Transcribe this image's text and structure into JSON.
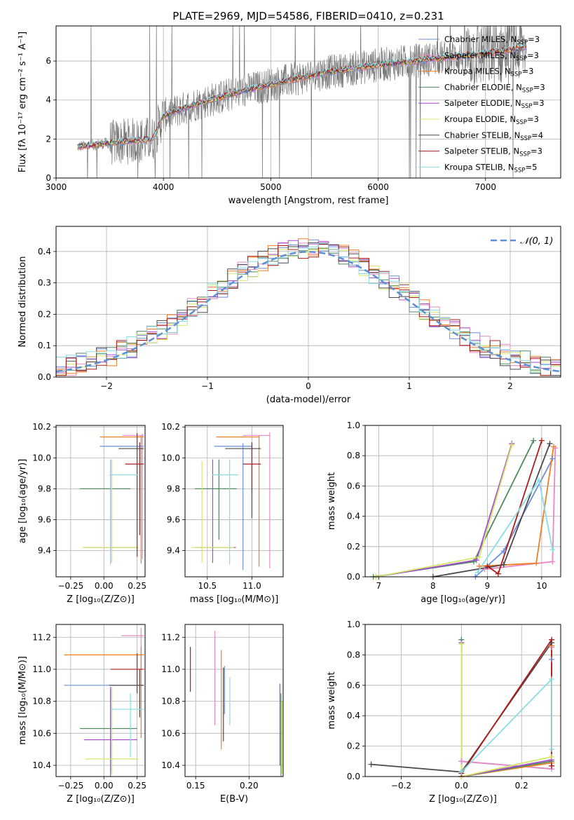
{
  "title": "PLATE=2969, MJD=54586, FIBERID=0410, z=0.231",
  "legend": [
    {
      "name": "Chabrier MILES, N",
      "sub": "SSP",
      "val": "=3",
      "color": "#6c8fdc"
    },
    {
      "name": "Salpeter MILES, N",
      "sub": "SSP",
      "val": "=3",
      "color": "#e68ac4"
    },
    {
      "name": "Kroupa MILES, N",
      "sub": "SSP",
      "val": "=3",
      "color": "#f07f22"
    },
    {
      "name": "Chabrier ELODIE, N",
      "sub": "SSP",
      "val": "=3",
      "color": "#4f8a5f"
    },
    {
      "name": "Salpeter ELODIE, N",
      "sub": "SSP",
      "val": "=3",
      "color": "#a34ccf"
    },
    {
      "name": "Kroupa ELODIE, N",
      "sub": "SSP",
      "val": "=3",
      "color": "#d4e86a"
    },
    {
      "name": "Chabrier STELIB, N",
      "sub": "SSP",
      "val": "=4",
      "color": "#4a4a4a"
    },
    {
      "name": "Salpeter STELIB, N",
      "sub": "SSP",
      "val": "=3",
      "color": "#b01c1c"
    },
    {
      "name": "Kroupa STELIB, N",
      "sub": "SSP",
      "val": "=5",
      "color": "#88dde3"
    }
  ],
  "gauss_legend": "𝒩(0, 1)",
  "chart_data": [
    {
      "type": "line",
      "title": "PLATE=2969, MJD=54586, FIBERID=0410, z=0.231",
      "xlabel": "wavelength [Angstrom, rest frame]",
      "ylabel": "Flux [fλ 10⁻¹⁷ erg cm⁻² s⁻¹ A⁻¹]",
      "xlim": [
        3000,
        7700
      ],
      "ylim": [
        0,
        7.8
      ],
      "xticks": [
        "3000",
        "4000",
        "5000",
        "6000",
        "7000"
      ],
      "yticks": [
        "0",
        "2",
        "4",
        "6"
      ],
      "data_x_range": [
        3200,
        7380
      ],
      "model_trend": {
        "x": [
          3200,
          3500,
          3900,
          4000,
          4300,
          4700,
          5000,
          5500,
          6000,
          6500,
          7000,
          7380
        ],
        "y": [
          1.6,
          1.8,
          2.0,
          3.2,
          3.8,
          4.4,
          4.8,
          5.4,
          5.8,
          6.1,
          6.4,
          6.7
        ]
      }
    },
    {
      "type": "histogram",
      "xlabel": "(data-model)/error",
      "ylabel": "Normed distribution",
      "xlim": [
        -2.5,
        2.5
      ],
      "ylim": [
        0,
        0.48
      ],
      "xticks": [
        "−2",
        "−1",
        "0",
        "1",
        "2"
      ],
      "yticks": [
        "0.0",
        "0.1",
        "0.2",
        "0.3",
        "0.4"
      ],
      "reference": "N(0,1)",
      "bin_width": 0.1
    },
    {
      "type": "errorbar",
      "xlabel": "Z [log₁₀(Z/Z⊙)]",
      "ylabel": "age  [log₁₀(age/yr)]",
      "xlim": [
        -0.36,
        0.31
      ],
      "ylim": [
        9.23,
        10.21
      ],
      "xticks": [
        "−0.25",
        "0.00",
        "0.25"
      ],
      "yticks": [
        "9.4",
        "9.6",
        "9.8",
        "10.0",
        "10.2"
      ],
      "points": [
        {
          "x": 0.27,
          "xerr": [
            0.3,
            0.03
          ],
          "y": 10.075,
          "yerr": [
            0.3,
            0.02
          ],
          "color": "#6c8fdc"
        },
        {
          "x": 0.29,
          "xerr": [
            0.15,
            0.01
          ],
          "y": 10.145,
          "yerr": [
            0.8,
            0.01
          ],
          "color": "#e68ac4"
        },
        {
          "x": 0.28,
          "xerr": [
            0.31,
            0.02
          ],
          "y": 10.135,
          "yerr": [
            0.82,
            0.01
          ],
          "color": "#f07f22"
        },
        {
          "x": 0.05,
          "xerr": [
            0.23,
            0.15
          ],
          "y": 9.8,
          "yerr": [
            0.33,
            0.19
          ],
          "color": "#4f8a5f"
        },
        {
          "x": 0.05,
          "xerr": [
            0.2,
            0.2
          ],
          "y": 9.42,
          "yerr": [
            0.1,
            0.57
          ],
          "color": "#a34ccf"
        },
        {
          "x": 0.06,
          "xerr": [
            0.22,
            0.2
          ],
          "y": 9.42,
          "yerr": [
            0.1,
            0.57
          ],
          "color": "#d4e86a"
        },
        {
          "x": 0.27,
          "xerr": [
            0.16,
            0.03
          ],
          "y": 10.06,
          "yerr": [
            0.56,
            0.04
          ],
          "color": "#4a4a4a"
        },
        {
          "x": 0.25,
          "xerr": [
            0.09,
            0.05
          ],
          "y": 9.96,
          "yerr": [
            0.6,
            0.2
          ],
          "color": "#b01c1c"
        },
        {
          "x": 0.05,
          "xerr": [
            0.01,
            0.21
          ],
          "y": 9.89,
          "yerr": [
            0.58,
            0.1
          ],
          "color": "#88dde3"
        }
      ]
    },
    {
      "type": "errorbar",
      "xlabel": "mass [log₁₀(M/M⊙)]",
      "ylabel": "",
      "xlim": [
        10.25,
        11.35
      ],
      "ylim": [
        9.23,
        10.21
      ],
      "xticks": [
        "10.5",
        "11.0"
      ],
      "yticks": [
        "9.4",
        "9.6",
        "9.8",
        "10.0",
        "10.2"
      ],
      "points": [
        {
          "x": 10.9,
          "xerr": [
            0.32,
            0.1
          ],
          "y": 10.075,
          "yerr": [
            0.8,
            0.02
          ],
          "color": "#6c8fdc"
        },
        {
          "x": 11.2,
          "xerr": [
            0.3,
            0.0
          ],
          "y": 10.145,
          "yerr": [
            0.86,
            0.02
          ],
          "color": "#e68ac4"
        },
        {
          "x": 11.08,
          "xerr": [
            0.48,
            0.0
          ],
          "y": 10.135,
          "yerr": [
            0.84,
            0.01
          ],
          "color": "#f07f22"
        },
        {
          "x": 10.63,
          "xerr": [
            0.27,
            0.2
          ],
          "y": 9.8,
          "yerr": [
            0.33,
            0.19
          ],
          "color": "#4f8a5f"
        },
        {
          "x": 10.56,
          "xerr": [
            0.2,
            0.26
          ],
          "y": 9.42,
          "yerr": [
            0.1,
            0.57
          ],
          "color": "#a34ccf"
        },
        {
          "x": 10.44,
          "xerr": [
            0.12,
            0.36
          ],
          "y": 9.42,
          "yerr": [
            0.1,
            0.56
          ],
          "color": "#d4e86a"
        },
        {
          "x": 11.0,
          "xerr": [
            0.3,
            0.1
          ],
          "y": 10.06,
          "yerr": [
            0.45,
            0.04
          ],
          "color": "#4a4a4a"
        },
        {
          "x": 11.0,
          "xerr": [
            0.1,
            0.1
          ],
          "y": 9.96,
          "yerr": [
            0.18,
            0.14
          ],
          "color": "#b01c1c"
        },
        {
          "x": 10.75,
          "xerr": [
            0.2,
            0.1
          ],
          "y": 9.89,
          "yerr": [
            0.58,
            0.1
          ],
          "color": "#88dde3"
        }
      ]
    },
    {
      "type": "line",
      "xlabel": "age  [log₁₀(age/yr)]",
      "ylabel": "mass weight",
      "xlim": [
        6.75,
        10.35
      ],
      "ylim": [
        0,
        1.0
      ],
      "xticks": [
        "7",
        "8",
        "9",
        "10"
      ],
      "yticks": [
        "0.0",
        "0.2",
        "0.4",
        "0.6",
        "0.8",
        "1.0"
      ],
      "series": [
        {
          "color": "#6c8fdc",
          "x": [
            8.78,
            9.3,
            10.2
          ],
          "y": [
            0.0,
            0.17,
            0.78
          ]
        },
        {
          "color": "#e68ac4",
          "x": [
            8.95,
            10.2,
            10.25
          ],
          "y": [
            0.05,
            0.1,
            0.85
          ]
        },
        {
          "color": "#f07f22",
          "x": [
            8.85,
            9.9,
            10.22
          ],
          "y": [
            0.07,
            0.09,
            0.86
          ]
        },
        {
          "color": "#4f8a5f",
          "x": [
            6.9,
            8.75,
            9.85
          ],
          "y": [
            0.0,
            0.1,
            0.9
          ]
        },
        {
          "color": "#a34ccf",
          "x": [
            6.95,
            8.8,
            9.45
          ],
          "y": [
            0.0,
            0.11,
            0.88
          ]
        },
        {
          "color": "#d4e86a",
          "x": [
            6.95,
            8.85,
            9.45
          ],
          "y": [
            0.0,
            0.13,
            0.87
          ]
        },
        {
          "color": "#4a4a4a",
          "x": [
            8.0,
            9.3,
            10.15
          ],
          "y": [
            0.0,
            0.08,
            0.88
          ]
        },
        {
          "color": "#b01c1c",
          "x": [
            9.0,
            9.2,
            10.0
          ],
          "y": [
            0.07,
            0.02,
            0.9
          ]
        },
        {
          "color": "#88dde3",
          "x": [
            8.82,
            9.95,
            10.2
          ],
          "y": [
            0.03,
            0.64,
            0.18
          ]
        }
      ]
    },
    {
      "type": "errorbar",
      "xlabel": "Z [log₁₀(Z/Z⊙)]",
      "ylabel": "mass [log₁₀(M/M⊙)]",
      "xlim": [
        -0.36,
        0.31
      ],
      "ylim": [
        10.33,
        11.28
      ],
      "xticks": [
        "−0.25",
        "0.00",
        "0.25"
      ],
      "yticks": [
        "10.4",
        "10.6",
        "10.8",
        "11.0",
        "11.2"
      ],
      "points": [
        {
          "x": 0.27,
          "xerr": [
            0.57,
            0.03
          ],
          "y": 10.9,
          "yerr": [
            0.2,
            0.1
          ],
          "color": "#6c8fdc"
        },
        {
          "x": 0.28,
          "xerr": [
            0.15,
            0.02
          ],
          "y": 11.21,
          "yerr": [
            0.2,
            0.05
          ],
          "color": "#e68ac4"
        },
        {
          "x": 0.28,
          "xerr": [
            0.58,
            0.02
          ],
          "y": 11.09,
          "yerr": [
            0.52,
            0.05
          ],
          "color": "#f07f22"
        },
        {
          "x": 0.05,
          "xerr": [
            0.23,
            0.2
          ],
          "y": 10.63,
          "yerr": [
            0.3,
            0.25
          ],
          "color": "#4f8a5f"
        },
        {
          "x": 0.05,
          "xerr": [
            0.2,
            0.2
          ],
          "y": 10.56,
          "yerr": [
            0.2,
            0.33
          ],
          "color": "#a34ccf"
        },
        {
          "x": 0.06,
          "xerr": [
            0.2,
            0.2
          ],
          "y": 10.44,
          "yerr": [
            0.1,
            0.45
          ],
          "color": "#d4e86a"
        },
        {
          "x": 0.27,
          "xerr": [
            0.23,
            0.03
          ],
          "y": 10.9,
          "yerr": [
            0.2,
            0.1
          ],
          "color": "#4a4a4a"
        },
        {
          "x": 0.25,
          "xerr": [
            0.2,
            0.05
          ],
          "y": 11.0,
          "yerr": [
            0.15,
            0.1
          ],
          "color": "#b01c1c"
        },
        {
          "x": 0.2,
          "xerr": [
            0.15,
            0.1
          ],
          "y": 10.75,
          "yerr": [
            0.3,
            0.1
          ],
          "color": "#88dde3"
        }
      ]
    },
    {
      "type": "errorbar",
      "xlabel": "E(B-V)",
      "ylabel": "",
      "xlim": [
        0.14,
        0.232
      ],
      "ylim": [
        10.33,
        11.28
      ],
      "xticks": [
        "0.15",
        "0.20"
      ],
      "yticks": [
        "10.4",
        "10.6",
        "10.8",
        "11.0",
        "11.2"
      ],
      "points": [
        {
          "x": 0.177,
          "xerr": [
            0,
            0
          ],
          "y": 10.9,
          "yerr": [
            0.18,
            0.12
          ],
          "color": "#6c8fdc"
        },
        {
          "x": 0.168,
          "xerr": [
            0,
            0
          ],
          "y": 10.98,
          "yerr": [
            0.33,
            0.26
          ],
          "color": "#e68ac4"
        },
        {
          "x": 0.174,
          "xerr": [
            0,
            0
          ],
          "y": 10.8,
          "yerr": [
            0.3,
            0.32
          ],
          "color": "#f07f22"
        },
        {
          "x": 0.23,
          "xerr": [
            0,
            0
          ],
          "y": 10.6,
          "yerr": [
            0.27,
            0.25
          ],
          "color": "#4f8a5f"
        },
        {
          "x": 0.229,
          "xerr": [
            0,
            0
          ],
          "y": 10.75,
          "yerr": [
            0.35,
            0.16
          ],
          "color": "#a34ccf"
        },
        {
          "x": 0.231,
          "xerr": [
            0,
            0
          ],
          "y": 10.6,
          "yerr": [
            0.25,
            0.2
          ],
          "color": "#d4e86a"
        },
        {
          "x": 0.176,
          "xerr": [
            0,
            0
          ],
          "y": 10.85,
          "yerr": [
            0.3,
            0.16
          ],
          "color": "#4a4a4a"
        },
        {
          "x": 0.145,
          "xerr": [
            0,
            0
          ],
          "y": 11.0,
          "yerr": [
            0.14,
            0.14
          ],
          "color": "#b01c1c"
        },
        {
          "x": 0.182,
          "xerr": [
            0,
            0
          ],
          "y": 10.8,
          "yerr": [
            0.15,
            0.15
          ],
          "color": "#88dde3"
        }
      ]
    },
    {
      "type": "line",
      "xlabel": "Z [log₁₀(Z/Z⊙)]",
      "ylabel": "mass weight",
      "xlim": [
        -0.32,
        0.33
      ],
      "ylim": [
        0,
        1.0
      ],
      "xticks": [
        "−0.2",
        "0.0",
        "0.2"
      ],
      "yticks": [
        "0.0",
        "0.2",
        "0.4",
        "0.6",
        "0.8",
        "1.0"
      ],
      "series": [
        {
          "color": "#6c8fdc",
          "x": [
            0.0,
            0.3,
            0.3
          ],
          "y": [
            0.1,
            0.05,
            0.77
          ]
        },
        {
          "color": "#e68ac4",
          "x": [
            0.0,
            0.3,
            0.3
          ],
          "y": [
            0.1,
            0.05,
            0.85
          ]
        },
        {
          "color": "#f07f22",
          "x": [
            0.0,
            0.3,
            0.3
          ],
          "y": [
            0.0,
            0.09,
            0.86
          ]
        },
        {
          "color": "#4f8a5f",
          "x": [
            0.0,
            0.0,
            0.3
          ],
          "y": [
            0.9,
            0.0,
            0.1
          ]
        },
        {
          "color": "#a34ccf",
          "x": [
            0.0,
            0.0,
            0.3
          ],
          "y": [
            0.88,
            0.0,
            0.11
          ]
        },
        {
          "color": "#d4e86a",
          "x": [
            0.0,
            0.0,
            0.3
          ],
          "y": [
            0.87,
            0.0,
            0.13
          ]
        },
        {
          "color": "#4a4a4a",
          "x": [
            -0.3,
            0.0,
            0.3
          ],
          "y": [
            0.08,
            0.03,
            0.88
          ]
        },
        {
          "color": "#b01c1c",
          "x": [
            0.0,
            0.3,
            0.3
          ],
          "y": [
            0.02,
            0.9,
            0.07
          ]
        },
        {
          "color": "#88dde3",
          "x": [
            0.0,
            0.3,
            0.3
          ],
          "y": [
            0.03,
            0.64,
            0.18
          ]
        }
      ]
    }
  ]
}
